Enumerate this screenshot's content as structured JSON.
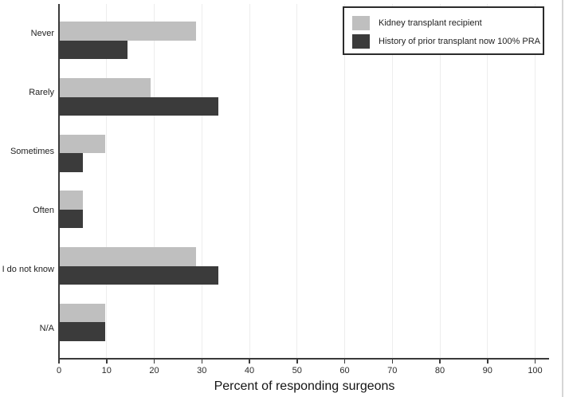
{
  "chart_data": {
    "type": "bar",
    "orientation": "horizontal",
    "title": "",
    "xlabel": "Percent of responding surgeons",
    "ylabel": "",
    "categories": [
      "Never",
      "Rarely",
      "Sometimes",
      "Often",
      "I do not know",
      "N/A"
    ],
    "series": [
      {
        "name": "Kidney transplant recipient",
        "color": "#bfbfbf",
        "values": [
          28.6,
          19.0,
          9.5,
          4.8,
          28.6,
          9.5
        ]
      },
      {
        "name": "History of prior transplant now 100% PRA",
        "color": "#3b3b3b",
        "values": [
          14.3,
          33.3,
          4.8,
          4.8,
          33.3,
          9.5
        ]
      }
    ],
    "x_ticks": [
      0,
      10,
      20,
      30,
      40,
      50,
      60,
      70,
      80,
      90,
      100
    ],
    "xlim": [
      0,
      103
    ],
    "grid": "vertical-gridlines",
    "grid_color": "#ededed",
    "axis_color": "#3a3a3a",
    "text_color": "#1f1f1f",
    "legend_position": "top-right",
    "legend_border_color": "#2b2b2b"
  }
}
